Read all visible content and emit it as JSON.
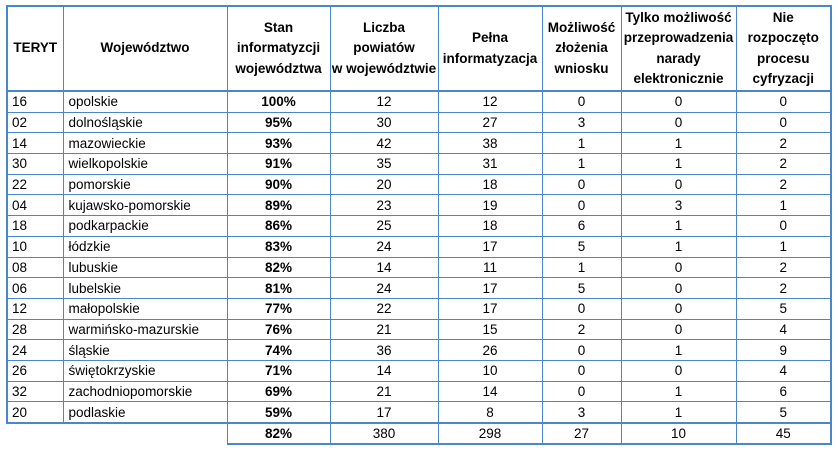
{
  "colors": {
    "border": "#4a86c8",
    "text": "#000000",
    "background": "#ffffff"
  },
  "table": {
    "headers": [
      "TERYT",
      "Województwo",
      "Stan\ninformatyzcji\nwojewództwa",
      "Liczba powiatów\nw województwie",
      "Pełna\ninformatyzacja",
      "Możliwość\nzłożenia\nwniosku",
      "Tylko możliwość\nprzeprowadzenia\nnarady\nelektronicznie",
      "Nie\nrozpoczęto\nprocesu\ncyfryzacji"
    ],
    "rows": [
      [
        "16",
        "opolskie",
        "100%",
        "12",
        "12",
        "0",
        "0",
        "0"
      ],
      [
        "02",
        "dolnośląskie",
        "95%",
        "30",
        "27",
        "3",
        "0",
        "0"
      ],
      [
        "14",
        "mazowieckie",
        "93%",
        "42",
        "38",
        "1",
        "1",
        "2"
      ],
      [
        "30",
        "wielkopolskie",
        "91%",
        "35",
        "31",
        "1",
        "1",
        "2"
      ],
      [
        "22",
        "pomorskie",
        "90%",
        "20",
        "18",
        "0",
        "0",
        "2"
      ],
      [
        "04",
        "kujawsko-pomorskie",
        "89%",
        "23",
        "19",
        "0",
        "3",
        "1"
      ],
      [
        "18",
        "podkarpackie",
        "86%",
        "25",
        "18",
        "6",
        "1",
        "0"
      ],
      [
        "10",
        "łódzkie",
        "83%",
        "24",
        "17",
        "5",
        "1",
        "1"
      ],
      [
        "08",
        "lubuskie",
        "82%",
        "14",
        "11",
        "1",
        "0",
        "2"
      ],
      [
        "06",
        "lubelskie",
        "81%",
        "24",
        "17",
        "5",
        "0",
        "2"
      ],
      [
        "12",
        "małopolskie",
        "77%",
        "22",
        "17",
        "0",
        "0",
        "5"
      ],
      [
        "28",
        "warmińsko-mazurskie",
        "76%",
        "21",
        "15",
        "2",
        "0",
        "4"
      ],
      [
        "24",
        "śląskie",
        "74%",
        "36",
        "26",
        "0",
        "1",
        "9"
      ],
      [
        "26",
        "świętokrzyskie",
        "71%",
        "14",
        "10",
        "0",
        "0",
        "4"
      ],
      [
        "32",
        "zachodniopomorskie",
        "69%",
        "21",
        "14",
        "0",
        "1",
        "6"
      ],
      [
        "20",
        "podlaskie",
        "59%",
        "17",
        "8",
        "3",
        "1",
        "5"
      ]
    ],
    "totals": [
      "82%",
      "380",
      "298",
      "27",
      "10",
      "45"
    ]
  }
}
